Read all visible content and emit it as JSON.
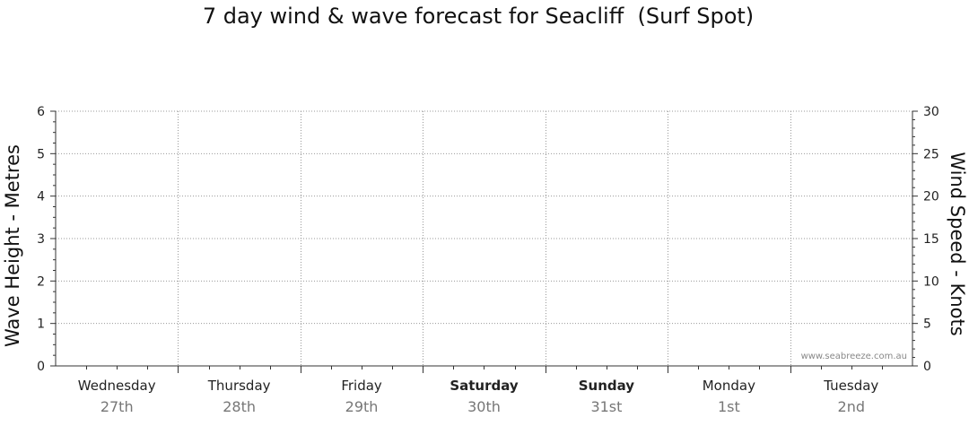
{
  "chart_data": {
    "type": "line",
    "title": "7 day wind & wave forecast for Seacliff  (Surf Spot)",
    "ylabel_left": "Wave Height - Metres",
    "ylabel_right": "Wind Speed - Knots",
    "ylim_left": [
      0,
      6
    ],
    "ylim_right": [
      0,
      30
    ],
    "yticks_left": [
      "0",
      "1",
      "2",
      "3",
      "4",
      "5",
      "6"
    ],
    "yticks_right": [
      "0",
      "5",
      "10",
      "15",
      "20",
      "25",
      "30"
    ],
    "grid": true,
    "days": [
      {
        "name": "Wednesday",
        "date": "27th",
        "bold": false
      },
      {
        "name": "Thursday",
        "date": "28th",
        "bold": false
      },
      {
        "name": "Friday",
        "date": "29th",
        "bold": false
      },
      {
        "name": "Saturday",
        "date": "30th",
        "bold": true
      },
      {
        "name": "Sunday",
        "date": "31st",
        "bold": true
      },
      {
        "name": "Monday",
        "date": "1st",
        "bold": false
      },
      {
        "name": "Tuesday",
        "date": "2nd",
        "bold": false
      }
    ],
    "series": [],
    "watermark": "www.seabreeze.com.au"
  }
}
